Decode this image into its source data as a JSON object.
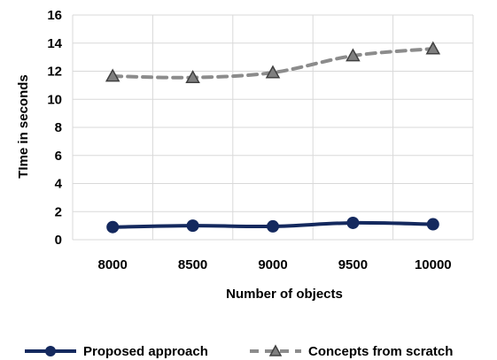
{
  "chart_data": {
    "type": "line",
    "title": "",
    "xlabel": "Number of objects",
    "ylabel": "TIme in seconds",
    "categories": [
      "8000",
      "8500",
      "9000",
      "9500",
      "10000"
    ],
    "ylim": [
      0,
      16
    ],
    "yticks": [
      0,
      2,
      4,
      6,
      8,
      10,
      12,
      14,
      16
    ],
    "grid": true,
    "legend_position": "bottom",
    "series": [
      {
        "name": "Proposed approach",
        "values": [
          0.9,
          1.0,
          0.95,
          1.2,
          1.1
        ],
        "color": "#14295e",
        "line_style": "solid",
        "marker": "circle"
      },
      {
        "name": "Concepts from scratch",
        "values": [
          11.65,
          11.55,
          11.9,
          13.1,
          13.6
        ],
        "color": "#8c8c8c",
        "line_style": "dashed",
        "marker": "triangle"
      }
    ]
  }
}
